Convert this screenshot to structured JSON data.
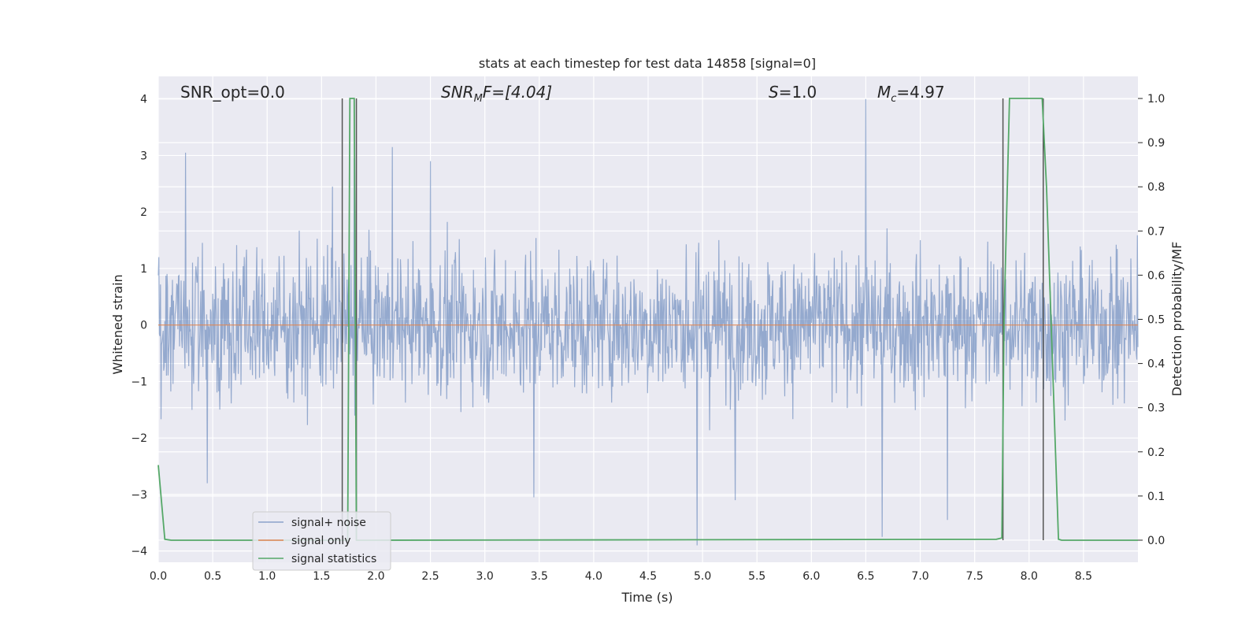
{
  "chart_data": {
    "type": "line",
    "title": "stats at each timestep for test data 14858 [signal=0]",
    "xlabel": "Time (s)",
    "ylabel": "Whitened strain",
    "y2label": "Detection probability/MF",
    "xlim": [
      0.0,
      9.0
    ],
    "ylim": [
      -4.2,
      4.4
    ],
    "y2lim": [
      -0.05,
      1.05
    ],
    "xticks": [
      "0.0",
      "0.5",
      "1.0",
      "1.5",
      "2.0",
      "2.5",
      "3.0",
      "3.5",
      "4.0",
      "4.5",
      "5.0",
      "5.5",
      "6.0",
      "6.5",
      "7.0",
      "7.5",
      "8.0",
      "8.5"
    ],
    "yticks": [
      "4",
      "3",
      "2",
      "1",
      "0",
      "−1",
      "−2",
      "−3",
      "−4"
    ],
    "y2ticks": [
      "1.0",
      "0.9",
      "0.8",
      "0.7",
      "0.6",
      "0.5",
      "0.4",
      "0.3",
      "0.2",
      "0.1",
      "0.0"
    ],
    "grid": true,
    "legend_position": "lower-left",
    "annotations": {
      "snr_opt": "SNR_opt=0.0",
      "snr_mf_prefix": "SNR",
      "snr_mf_sub": "M",
      "snr_mf_suffix": "F=[4.04]",
      "s_prefix": "S",
      "s_suffix": "=1.0",
      "mc_prefix": "M",
      "mc_sub": "c",
      "mc_suffix": "=4.97"
    },
    "series": [
      {
        "name": "signal+ noise",
        "color": "#4c72b0",
        "axis": "left",
        "description_values": "noise trace, typical amplitude between -1.6 and 1.6",
        "peaks": [
          {
            "x": 0.25,
            "y": 3.05
          },
          {
            "x": 0.45,
            "y": -2.8
          },
          {
            "x": 1.6,
            "y": 2.45
          },
          {
            "x": 1.8,
            "y": 2.95
          },
          {
            "x": 2.15,
            "y": 3.15
          },
          {
            "x": 2.5,
            "y": 2.9
          },
          {
            "x": 3.45,
            "y": -3.05
          },
          {
            "x": 4.95,
            "y": -3.9
          },
          {
            "x": 5.3,
            "y": -3.1
          },
          {
            "x": 6.5,
            "y": 4.0
          },
          {
            "x": 6.65,
            "y": -3.75
          },
          {
            "x": 7.25,
            "y": -3.45
          }
        ]
      },
      {
        "name": "signal only",
        "color": "#dd8452",
        "axis": "left",
        "values_note": "flat at 0"
      },
      {
        "name": "signal statistics",
        "color": "#55a868",
        "axis": "right",
        "x": [
          0.0,
          0.06,
          0.12,
          1.68,
          1.74,
          1.76,
          1.8,
          1.82,
          1.86,
          1.9,
          7.7,
          7.75,
          7.77,
          7.82,
          8.12,
          8.16,
          8.27,
          8.3,
          9.0
        ],
        "y": [
          0.17,
          0.002,
          0.0,
          0.0,
          0.0,
          1.0,
          1.0,
          0.0,
          0.0,
          0.0,
          0.002,
          0.005,
          0.5,
          1.0,
          1.0,
          0.8,
          0.002,
          0.0,
          0.0
        ]
      }
    ],
    "vertical_lines": [
      {
        "x": 1.69,
        "color": "#555555"
      },
      {
        "x": 1.82,
        "color": "#555555"
      },
      {
        "x": 7.76,
        "color": "#555555"
      },
      {
        "x": 8.13,
        "color": "#555555"
      }
    ]
  }
}
